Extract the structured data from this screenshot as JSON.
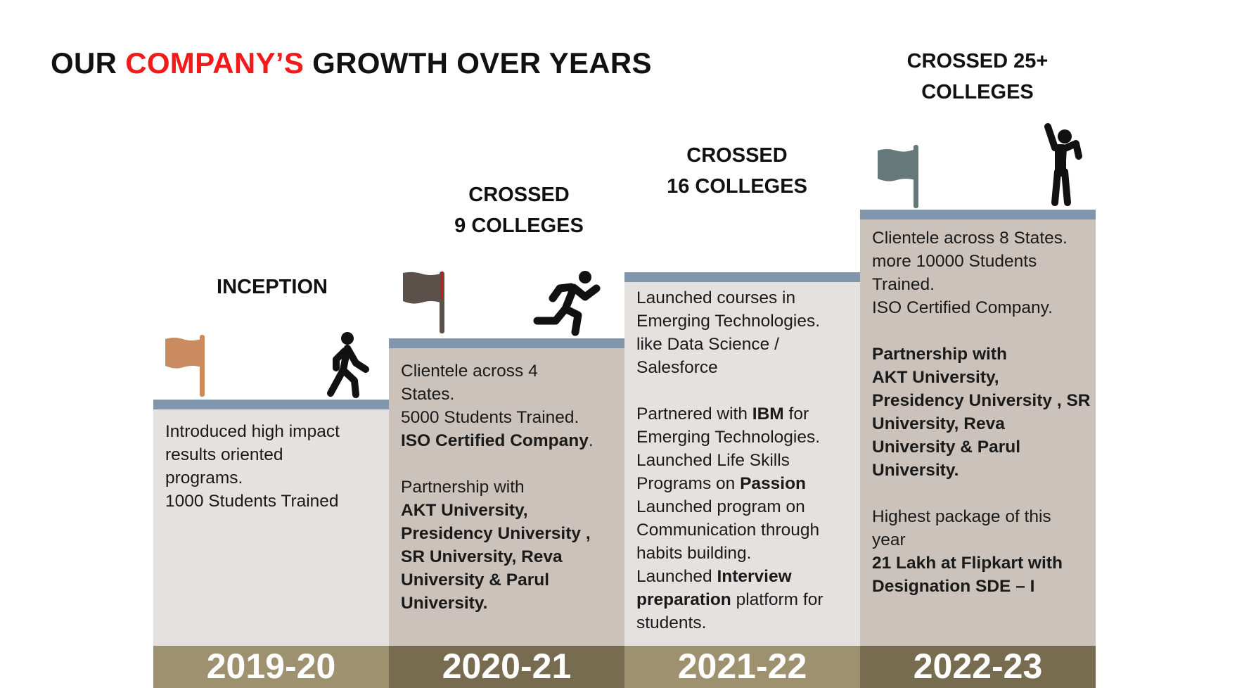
{
  "title": {
    "part1": "OUR ",
    "accent": "COMPANY’S",
    "part2": " GROWTH OVER YEARS",
    "accent_color": "#f21a1a"
  },
  "colors": {
    "bar": "#7f96ad",
    "light_panel": "#e5e1de",
    "dark_panel": "#cbc2bc",
    "light_year": "#9e9170",
    "dark_year": "#776c4f"
  },
  "stages": [
    {
      "year": "2019-20",
      "heading": [
        "INCEPTION"
      ],
      "icons": [
        "flag-icon",
        "walking-person-icon"
      ],
      "lines": [
        [
          {
            "t": "Introduced high impact"
          }
        ],
        [
          {
            "t": "results oriented"
          }
        ],
        [
          {
            "t": "programs."
          }
        ],
        [
          {
            "t": "1000 Students Trained"
          }
        ]
      ]
    },
    {
      "year": "2020-21",
      "heading": [
        "CROSSED",
        "9 COLLEGES"
      ],
      "icons": [
        "flag-icon",
        "running-person-icon"
      ],
      "lines": [
        [
          {
            "t": "Clientele across 4"
          }
        ],
        [
          {
            "t": "States."
          }
        ],
        [
          {
            "t": "5000 Students Trained."
          }
        ],
        [
          {
            "t": "ISO Certified Company",
            "b": true
          },
          {
            "t": "."
          }
        ],
        [],
        [
          {
            "t": "Partnership with"
          }
        ],
        [
          {
            "t": "AKT University,",
            "b": true
          }
        ],
        [
          {
            "t": "Presidency University ,",
            "b": true
          }
        ],
        [
          {
            "t": "SR University, Reva",
            "b": true
          }
        ],
        [
          {
            "t": "University & Parul",
            "b": true
          }
        ],
        [
          {
            "t": "University.",
            "b": true
          }
        ]
      ]
    },
    {
      "year": "2021-22",
      "heading": [
        "CROSSED",
        "16 COLLEGES"
      ],
      "icons": [],
      "lines": [
        [
          {
            "t": "Launched courses in"
          }
        ],
        [
          {
            "t": "Emerging Technologies."
          }
        ],
        [
          {
            "t": "like Data Science /"
          }
        ],
        [
          {
            "t": "Salesforce"
          }
        ],
        [],
        [
          {
            "t": "Partnered with "
          },
          {
            "t": "IBM",
            "b": true
          },
          {
            "t": " for"
          }
        ],
        [
          {
            "t": "Emerging Technologies."
          }
        ],
        [
          {
            "t": "Launched Life Skills"
          }
        ],
        [
          {
            "t": "Programs on "
          },
          {
            "t": "Passion",
            "b": true
          }
        ],
        [
          {
            "t": "Launched program on"
          }
        ],
        [
          {
            "t": "Communication through"
          }
        ],
        [
          {
            "t": "habits building."
          }
        ],
        [
          {
            "t": "Launched "
          },
          {
            "t": "Interview",
            "b": true
          }
        ],
        [
          {
            "t": "preparation",
            "b": true
          },
          {
            "t": " platform for"
          }
        ],
        [
          {
            "t": "students."
          }
        ]
      ]
    },
    {
      "year": "2022-23",
      "heading": [
        "CROSSED 25+",
        "COLLEGES"
      ],
      "icons": [
        "flag-icon",
        "cheering-person-icon"
      ],
      "lines": [
        [
          {
            "t": "Clientele across 8 States."
          }
        ],
        [
          {
            "t": "more 10000 Students"
          }
        ],
        [
          {
            "t": "Trained."
          }
        ],
        [
          {
            "t": "ISO Certified Company."
          }
        ],
        [],
        [
          {
            "t": "Partnership with",
            "b": true
          }
        ],
        [
          {
            "t": "AKT University,",
            "b": true
          }
        ],
        [
          {
            "t": "Presidency University , SR",
            "b": true
          }
        ],
        [
          {
            "t": "University, Reva",
            "b": true
          }
        ],
        [
          {
            "t": "University & Parul",
            "b": true
          }
        ],
        [
          {
            "t": "University.",
            "b": true
          }
        ],
        [],
        [
          {
            "t": "Highest package of this"
          }
        ],
        [
          {
            "t": "year"
          }
        ],
        [
          {
            "t": "21 Lakh at Flipkart with",
            "b": true
          }
        ],
        [
          {
            "t": "Designation SDE – I",
            "b": true
          }
        ]
      ]
    }
  ]
}
